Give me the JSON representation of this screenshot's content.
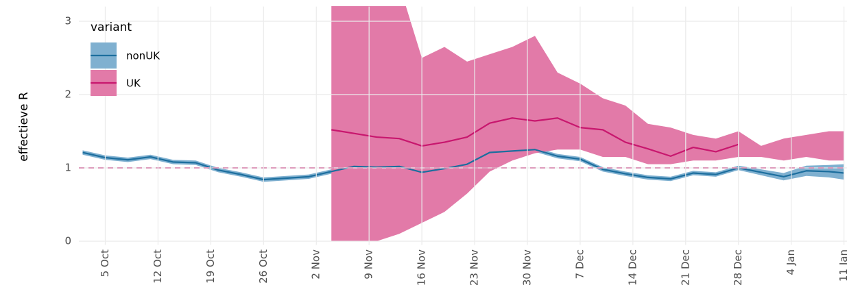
{
  "chart_data": {
    "type": "line",
    "y_label": "effectieve R",
    "legend_title": "variant",
    "legend_position": "top-left",
    "grid": true,
    "x": [
      -3,
      0,
      3,
      6,
      9,
      12,
      15,
      18,
      21,
      24,
      27,
      30,
      33,
      36,
      39,
      42,
      45,
      48,
      51,
      54,
      57,
      60,
      63,
      66,
      69,
      72,
      75,
      78,
      81,
      84,
      87,
      90,
      93,
      96,
      98
    ],
    "xlim": [
      -3.5,
      98.4
    ],
    "xticks": [
      {
        "value": 0,
        "label": "5 Oct"
      },
      {
        "value": 7,
        "label": "12 Oct"
      },
      {
        "value": 14,
        "label": "19 Oct"
      },
      {
        "value": 21,
        "label": "26 Oct"
      },
      {
        "value": 28,
        "label": "2 Nov"
      },
      {
        "value": 35,
        "label": "9 Nov"
      },
      {
        "value": 42,
        "label": "16 Nov"
      },
      {
        "value": 49,
        "label": "23 Nov"
      },
      {
        "value": 56,
        "label": "30 Nov"
      },
      {
        "value": 63,
        "label": "7 Dec"
      },
      {
        "value": 70,
        "label": "14 Dec"
      },
      {
        "value": 77,
        "label": "21 Dec"
      },
      {
        "value": 84,
        "label": "28 Dec"
      },
      {
        "value": 91,
        "label": "4 Jan"
      },
      {
        "value": 98,
        "label": "11 Jan"
      }
    ],
    "ylim": [
      -0.05,
      3.2
    ],
    "yticks": [
      0,
      1,
      2,
      3
    ],
    "reference_line": {
      "value": 1,
      "color": "#c8176e"
    },
    "series": [
      {
        "name": "nonUK",
        "color": "#1c6e9e",
        "band_color": "#7fb0d0",
        "values": [
          1.21,
          1.14,
          1.11,
          1.15,
          1.08,
          1.07,
          0.97,
          0.91,
          0.84,
          0.86,
          0.88,
          0.95,
          1.02,
          1.01,
          1.02,
          0.94,
          0.99,
          1.05,
          1.21,
          1.23,
          1.25,
          1.16,
          1.12,
          0.98,
          0.92,
          0.87,
          0.85,
          0.93,
          0.91,
          1.0,
          0.94,
          0.88,
          0.96,
          0.95,
          0.93
        ],
        "upper": [
          1.24,
          1.17,
          1.14,
          1.18,
          1.11,
          1.1,
          1.0,
          0.94,
          0.87,
          0.89,
          0.91,
          0.98,
          1.05,
          1.04,
          1.05,
          0.97,
          1.02,
          1.08,
          1.24,
          1.26,
          1.28,
          1.19,
          1.15,
          1.01,
          0.95,
          0.9,
          0.88,
          0.96,
          0.94,
          1.03,
          0.98,
          0.93,
          1.03,
          1.04,
          1.05
        ],
        "lower": [
          1.18,
          1.11,
          1.08,
          1.12,
          1.05,
          1.04,
          0.94,
          0.88,
          0.81,
          0.83,
          0.85,
          0.92,
          0.99,
          0.98,
          0.99,
          0.91,
          0.96,
          1.02,
          1.18,
          1.2,
          1.22,
          1.13,
          1.09,
          0.95,
          0.89,
          0.84,
          0.82,
          0.9,
          0.88,
          0.97,
          0.9,
          0.83,
          0.89,
          0.87,
          0.84
        ]
      },
      {
        "name": "UK",
        "color": "#c8176e",
        "band_color": "#e27aa8",
        "values": [
          null,
          null,
          null,
          null,
          null,
          null,
          null,
          null,
          null,
          null,
          null,
          1.52,
          1.47,
          1.42,
          1.4,
          1.3,
          1.35,
          1.42,
          1.61,
          1.68,
          1.64,
          1.68,
          1.55,
          1.52,
          1.35,
          1.26,
          1.16,
          1.28,
          1.22,
          1.32,
          null,
          null,
          null,
          null,
          null
        ],
        "upper": [
          null,
          null,
          null,
          null,
          null,
          null,
          null,
          null,
          null,
          null,
          null,
          3.5,
          3.5,
          3.5,
          3.5,
          2.5,
          2.65,
          2.45,
          2.55,
          2.65,
          2.8,
          2.3,
          2.15,
          1.95,
          1.85,
          1.6,
          1.55,
          1.45,
          1.4,
          1.5,
          1.3,
          1.4,
          1.45,
          1.5,
          1.5
        ],
        "lower": [
          null,
          null,
          null,
          null,
          null,
          null,
          null,
          null,
          null,
          null,
          null,
          0,
          0,
          0,
          0.1,
          0.25,
          0.4,
          0.65,
          0.95,
          1.1,
          1.2,
          1.25,
          1.25,
          1.15,
          1.15,
          1.05,
          1.05,
          1.1,
          1.1,
          1.15,
          1.15,
          1.1,
          1.15,
          1.1,
          1.1
        ]
      }
    ]
  }
}
